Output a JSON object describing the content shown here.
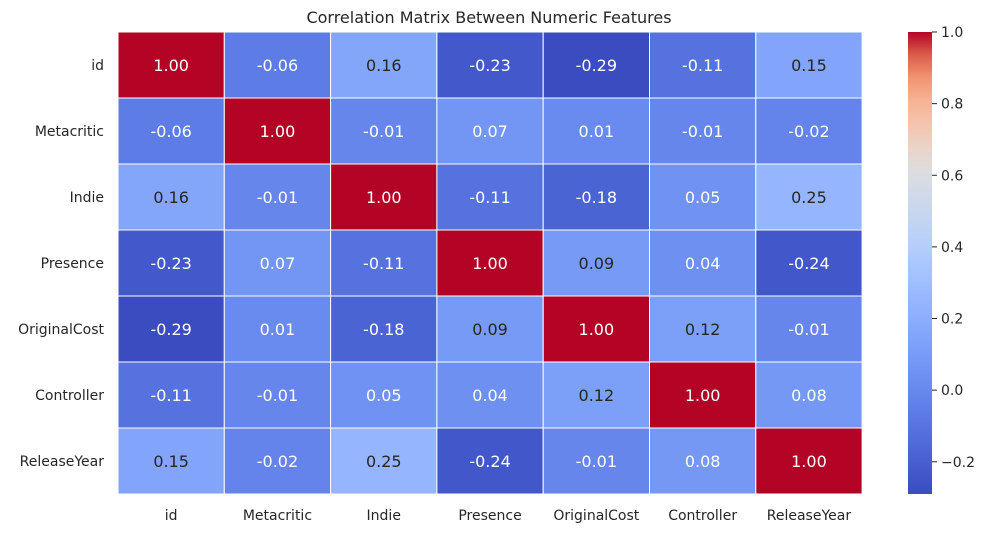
{
  "chart_data": {
    "type": "heatmap",
    "title": "Correlation Matrix Between Numeric Features",
    "xlabel": "",
    "ylabel": "",
    "row_labels": [
      "id",
      "Metacritic",
      "Indie",
      "Presence",
      "OriginalCost",
      "Controller",
      "ReleaseYear"
    ],
    "col_labels": [
      "id",
      "Metacritic",
      "Indie",
      "Presence",
      "OriginalCost",
      "Controller",
      "ReleaseYear"
    ],
    "values": [
      [
        1.0,
        -0.06,
        0.16,
        -0.23,
        -0.29,
        -0.11,
        0.15
      ],
      [
        -0.06,
        1.0,
        -0.01,
        0.07,
        0.01,
        -0.01,
        -0.02
      ],
      [
        0.16,
        -0.01,
        1.0,
        -0.11,
        -0.18,
        0.05,
        0.25
      ],
      [
        -0.23,
        0.07,
        -0.11,
        1.0,
        0.09,
        0.04,
        -0.24
      ],
      [
        -0.29,
        0.01,
        -0.18,
        0.09,
        1.0,
        0.12,
        -0.01
      ],
      [
        -0.11,
        -0.01,
        0.05,
        0.04,
        0.12,
        1.0,
        0.08
      ],
      [
        0.15,
        -0.02,
        0.25,
        -0.24,
        -0.01,
        0.08,
        1.0
      ]
    ],
    "annotations": [
      [
        "1.00",
        "-0.06",
        "0.16",
        "-0.23",
        "-0.29",
        "-0.11",
        "0.15"
      ],
      [
        "-0.06",
        "1.00",
        "-0.01",
        "0.07",
        "0.01",
        "-0.01",
        "-0.02"
      ],
      [
        "0.16",
        "-0.01",
        "1.00",
        "-0.11",
        "-0.18",
        "0.05",
        "0.25"
      ],
      [
        "-0.23",
        "0.07",
        "-0.11",
        "1.00",
        "0.09",
        "0.04",
        "-0.24"
      ],
      [
        "-0.29",
        "0.01",
        "-0.18",
        "0.09",
        "1.00",
        "0.12",
        "-0.01"
      ],
      [
        "-0.11",
        "-0.01",
        "0.05",
        "0.04",
        "0.12",
        "1.00",
        "0.08"
      ],
      [
        "0.15",
        "-0.02",
        "0.25",
        "-0.24",
        "-0.01",
        "0.08",
        "1.00"
      ]
    ],
    "colormap": "coolwarm",
    "colorbar": {
      "vmin": -0.29,
      "vmax": 1.0,
      "ticks": [
        -0.2,
        0.0,
        0.2,
        0.4,
        0.6,
        0.8,
        1.0
      ],
      "tick_labels": [
        "−0.2",
        "0.0",
        "0.2",
        "0.4",
        "0.6",
        "0.8",
        "1.0"
      ]
    },
    "cell_border_color": "#ffffff",
    "text_color_dark": "#262626",
    "text_color_light": "#ffffff"
  }
}
